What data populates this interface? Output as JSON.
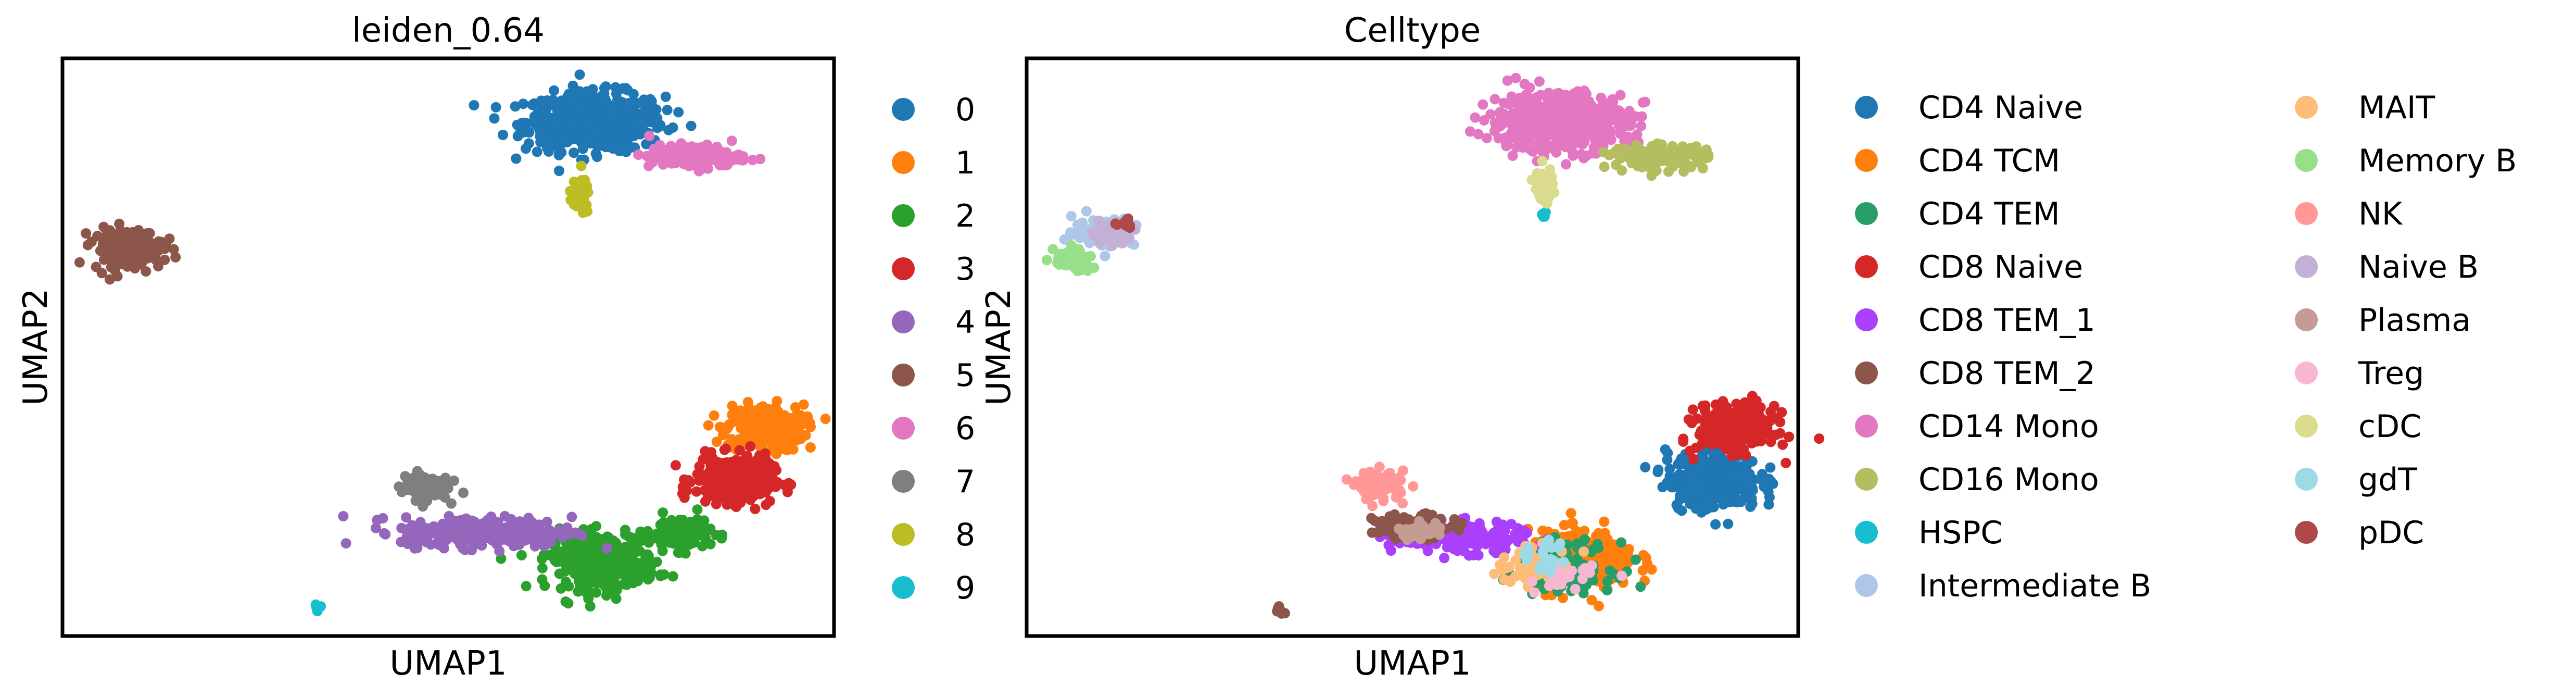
{
  "chart_data": [
    {
      "type": "scatter",
      "title": "leiden_0.64",
      "xlabel": "UMAP1",
      "ylabel": "UMAP2",
      "xlim": [
        0,
        100
      ],
      "ylim": [
        0,
        100
      ],
      "ticks": false,
      "grid": false,
      "legend_position": "right",
      "legend_columns": 1,
      "series": [
        {
          "name": "0",
          "color": "#1f77b4",
          "clusters": [
            {
              "cx": 69,
              "cy": 89,
              "rx": 9,
              "ry": 5,
              "n": 520
            }
          ]
        },
        {
          "name": "1",
          "color": "#ff7f0e",
          "clusters": [
            {
              "cx": 91,
              "cy": 36,
              "rx": 5,
              "ry": 4,
              "n": 300
            }
          ]
        },
        {
          "name": "2",
          "color": "#2ca02c",
          "clusters": [
            {
              "cx": 70,
              "cy": 13,
              "rx": 7,
              "ry": 5,
              "n": 320
            },
            {
              "cx": 80,
              "cy": 18,
              "rx": 4,
              "ry": 3,
              "n": 110
            }
          ]
        },
        {
          "name": "3",
          "color": "#d62728",
          "clusters": [
            {
              "cx": 87,
              "cy": 27,
              "rx": 5,
              "ry": 4,
              "n": 300
            }
          ]
        },
        {
          "name": "4",
          "color": "#9467bd",
          "clusters": [
            {
              "cx": 55,
              "cy": 18,
              "rx": 11,
              "ry": 2.6,
              "n": 300
            }
          ]
        },
        {
          "name": "5",
          "color": "#8c564b",
          "clusters": [
            {
              "cx": 8.5,
              "cy": 67,
              "rx": 4.5,
              "ry": 3.5,
              "n": 160
            }
          ]
        },
        {
          "name": "6",
          "color": "#e377c2",
          "clusters": [
            {
              "cx": 82,
              "cy": 83,
              "rx": 6,
              "ry": 2,
              "n": 160
            }
          ]
        },
        {
          "name": "7",
          "color": "#7f7f7f",
          "clusters": [
            {
              "cx": 47,
              "cy": 26,
              "rx": 3,
              "ry": 2.4,
              "n": 90
            }
          ]
        },
        {
          "name": "8",
          "color": "#bcbd22",
          "clusters": [
            {
              "cx": 67,
              "cy": 76,
              "rx": 1.3,
              "ry": 3,
              "n": 50
            }
          ]
        },
        {
          "name": "9",
          "color": "#17becf",
          "clusters": [
            {
              "cx": 33,
              "cy": 4.7,
              "rx": 0.8,
              "ry": 0.8,
              "n": 8
            }
          ]
        }
      ]
    },
    {
      "type": "scatter",
      "title": "Celltype",
      "xlabel": "UMAP1",
      "ylabel": "UMAP2",
      "xlim": [
        0,
        100
      ],
      "ylim": [
        0,
        100
      ],
      "ticks": false,
      "grid": false,
      "legend_position": "right",
      "legend_columns": 2,
      "series": [
        {
          "name": "CD4 Naive",
          "color": "#1f77b4",
          "clusters": [
            {
              "cx": 89,
              "cy": 27,
              "rx": 6,
              "ry": 5,
              "n": 320
            }
          ]
        },
        {
          "name": "CD4 TCM",
          "color": "#ff7f0e",
          "clusters": [
            {
              "cx": 72,
              "cy": 13,
              "rx": 7,
              "ry": 5,
              "n": 320
            }
          ]
        },
        {
          "name": "CD4 TEM",
          "color": "#279e68",
          "clusters": [
            {
              "cx": 70,
              "cy": 12,
              "rx": 6,
              "ry": 4,
              "n": 120
            }
          ]
        },
        {
          "name": "CD8 Naive",
          "color": "#d62728",
          "clusters": [
            {
              "cx": 92,
              "cy": 36,
              "rx": 5,
              "ry": 4,
              "n": 300
            }
          ]
        },
        {
          "name": "CD8 TEM_1",
          "color": "#aa40fc",
          "clusters": [
            {
              "cx": 56,
              "cy": 17,
              "rx": 9,
              "ry": 2.5,
              "n": 180
            }
          ]
        },
        {
          "name": "CD8 TEM_2",
          "color": "#8c564b",
          "clusters": [
            {
              "cx": 50,
              "cy": 19,
              "rx": 5,
              "ry": 2,
              "n": 90
            },
            {
              "cx": 33,
              "cy": 4.5,
              "rx": 0.8,
              "ry": 0.8,
              "n": 6
            }
          ]
        },
        {
          "name": "CD14 Mono",
          "color": "#e377c2",
          "clusters": [
            {
              "cx": 69,
              "cy": 89,
              "rx": 9,
              "ry": 5,
              "n": 520
            }
          ]
        },
        {
          "name": "CD16 Mono",
          "color": "#b5bd61",
          "clusters": [
            {
              "cx": 82,
              "cy": 83,
              "rx": 6,
              "ry": 2,
              "n": 160
            }
          ]
        },
        {
          "name": "HSPC",
          "color": "#17becf",
          "clusters": [
            {
              "cx": 67,
              "cy": 73,
              "rx": 0.5,
              "ry": 1,
              "n": 6
            }
          ]
        },
        {
          "name": "Intermediate B",
          "color": "#aec7e8",
          "clusters": [
            {
              "cx": 10,
              "cy": 70,
              "rx": 4,
              "ry": 2.5,
              "n": 90
            }
          ]
        },
        {
          "name": "MAIT",
          "color": "#ffbb78",
          "clusters": [
            {
              "cx": 66,
              "cy": 12,
              "rx": 5,
              "ry": 3,
              "n": 70
            }
          ]
        },
        {
          "name": "Memory B",
          "color": "#98df8a",
          "clusters": [
            {
              "cx": 6,
              "cy": 65,
              "rx": 2.5,
              "ry": 2.5,
              "n": 60
            }
          ]
        },
        {
          "name": "NK",
          "color": "#ff9896",
          "clusters": [
            {
              "cx": 46,
              "cy": 26,
              "rx": 3,
              "ry": 2.5,
              "n": 80
            }
          ]
        },
        {
          "name": "Naive B",
          "color": "#c5b0d5",
          "clusters": [
            {
              "cx": 11,
              "cy": 70,
              "rx": 3,
              "ry": 2,
              "n": 40
            }
          ]
        },
        {
          "name": "Plasma",
          "color": "#c49c94",
          "clusters": [
            {
              "cx": 51,
              "cy": 18,
              "rx": 3,
              "ry": 1.5,
              "n": 25
            }
          ]
        },
        {
          "name": "Treg",
          "color": "#f7b6d2",
          "clusters": [
            {
              "cx": 70,
              "cy": 10,
              "rx": 4,
              "ry": 2.5,
              "n": 25
            }
          ]
        },
        {
          "name": "cDC",
          "color": "#dbdb8d",
          "clusters": [
            {
              "cx": 67,
              "cy": 78,
              "rx": 1.2,
              "ry": 3,
              "n": 45
            }
          ]
        },
        {
          "name": "gdT",
          "color": "#9edae5",
          "clusters": [
            {
              "cx": 67,
              "cy": 14,
              "rx": 4,
              "ry": 3,
              "n": 20
            }
          ]
        },
        {
          "name": "pDC",
          "color": "#ad494a",
          "clusters": [
            {
              "cx": 13,
              "cy": 71,
              "rx": 1,
              "ry": 1,
              "n": 10
            }
          ]
        }
      ]
    }
  ]
}
